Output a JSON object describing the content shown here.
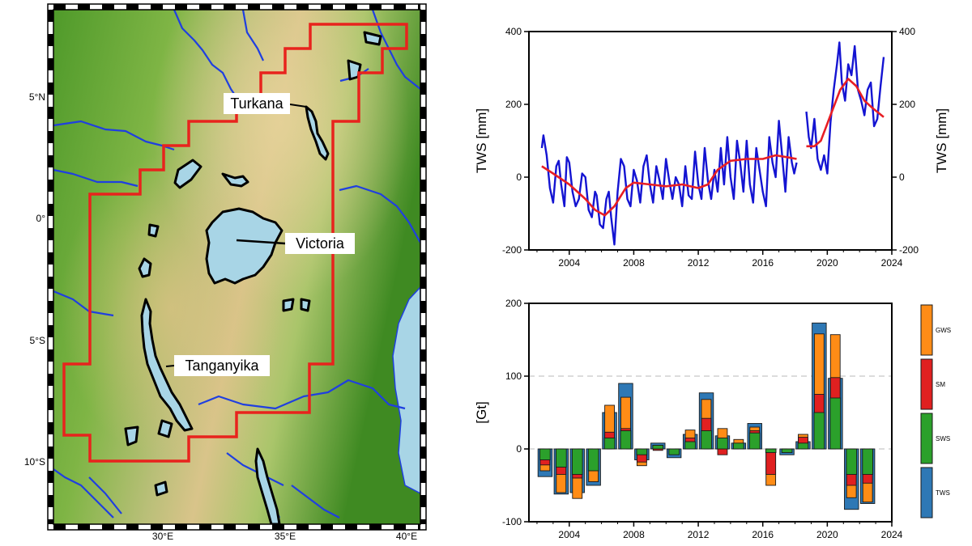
{
  "map": {
    "lon_ticks": [
      "30°E",
      "35°E",
      "40°E"
    ],
    "lat_ticks": [
      "5°N",
      "0°",
      "5°S",
      "10°S"
    ],
    "lakes": [
      {
        "key": "turkana",
        "label": "Turkana"
      },
      {
        "key": "victoria",
        "label": "Victoria"
      },
      {
        "key": "tanganyika",
        "label": "Tanganyika"
      }
    ],
    "colors": {
      "basin_outline": "#e8231d",
      "rivers": "#1f3fe0",
      "lake_fill": "#a8d5e6",
      "lowland": "#4f9a2a",
      "highland": "#d9c48a"
    }
  },
  "chart_data": [
    {
      "type": "line",
      "ylabel_left": "TWS [mm]",
      "ylabel_right": "TWS [mm]",
      "xlim": [
        2001.5,
        2024
      ],
      "ylim": [
        -200,
        400
      ],
      "x_ticks": [
        2004,
        2008,
        2012,
        2016,
        2020,
        2024
      ],
      "y_ticks": [
        -200,
        0,
        200,
        400
      ],
      "grid": false,
      "series": [
        {
          "color": "#1414d2",
          "segments": [
            [
              [
                2002.3,
                80
              ],
              [
                2002.4,
                115
              ],
              [
                2002.6,
                60
              ],
              [
                2002.8,
                -30
              ],
              [
                2003.0,
                -70
              ],
              [
                2003.2,
                30
              ],
              [
                2003.35,
                45
              ],
              [
                2003.5,
                -20
              ],
              [
                2003.7,
                -80
              ],
              [
                2003.85,
                55
              ],
              [
                2004.0,
                40
              ],
              [
                2004.2,
                -40
              ],
              [
                2004.4,
                -80
              ],
              [
                2004.6,
                -60
              ],
              [
                2004.8,
                10
              ],
              [
                2005.0,
                0
              ],
              [
                2005.2,
                -90
              ],
              [
                2005.4,
                -110
              ],
              [
                2005.6,
                -40
              ],
              [
                2005.7,
                -50
              ],
              [
                2005.9,
                -130
              ],
              [
                2006.1,
                -140
              ],
              [
                2006.3,
                -60
              ],
              [
                2006.45,
                -40
              ],
              [
                2006.6,
                -110
              ],
              [
                2006.8,
                -185
              ],
              [
                2007.0,
                -40
              ],
              [
                2007.2,
                50
              ],
              [
                2007.4,
                30
              ],
              [
                2007.6,
                -60
              ],
              [
                2007.8,
                -80
              ],
              [
                2008.0,
                20
              ],
              [
                2008.2,
                -10
              ],
              [
                2008.4,
                -70
              ],
              [
                2008.6,
                30
              ],
              [
                2008.8,
                60
              ],
              [
                2009.0,
                -20
              ],
              [
                2009.2,
                -70
              ],
              [
                2009.4,
                30
              ],
              [
                2009.6,
                -10
              ],
              [
                2009.8,
                -60
              ],
              [
                2010.0,
                50
              ],
              [
                2010.2,
                -10
              ],
              [
                2010.4,
                -60
              ],
              [
                2010.6,
                0
              ],
              [
                2010.8,
                -20
              ],
              [
                2011.0,
                -80
              ],
              [
                2011.2,
                30
              ],
              [
                2011.4,
                -50
              ],
              [
                2011.6,
                -60
              ],
              [
                2011.8,
                70
              ],
              [
                2012.0,
                -20
              ],
              [
                2012.2,
                -60
              ],
              [
                2012.4,
                80
              ],
              [
                2012.6,
                -10
              ],
              [
                2012.8,
                -60
              ],
              [
                2013.0,
                20
              ],
              [
                2013.2,
                -40
              ],
              [
                2013.4,
                80
              ],
              [
                2013.6,
                -20
              ],
              [
                2013.8,
                110
              ],
              [
                2014.0,
                0
              ],
              [
                2014.2,
                -60
              ],
              [
                2014.4,
                100
              ],
              [
                2014.6,
                40
              ],
              [
                2014.8,
                -40
              ],
              [
                2015.0,
                100
              ],
              [
                2015.2,
                -20
              ],
              [
                2015.4,
                -70
              ],
              [
                2015.6,
                80
              ],
              [
                2015.8,
                20
              ],
              [
                2016.0,
                -40
              ],
              [
                2016.2,
                -80
              ],
              [
                2016.4,
                110
              ],
              [
                2016.6,
                40
              ],
              [
                2016.8,
                0
              ],
              [
                2017.0,
                155
              ],
              [
                2017.2,
                60
              ],
              [
                2017.4,
                -40
              ],
              [
                2017.6,
                110
              ],
              [
                2017.8,
                40
              ],
              [
                2017.95,
                10
              ],
              [
                2018.1,
                40
              ]
            ],
            [
              [
                2018.7,
                180
              ],
              [
                2018.85,
                110
              ],
              [
                2019.0,
                80
              ],
              [
                2019.2,
                160
              ],
              [
                2019.4,
                50
              ],
              [
                2019.6,
                20
              ],
              [
                2019.8,
                60
              ],
              [
                2020.0,
                10
              ],
              [
                2020.2,
                150
              ],
              [
                2020.4,
                240
              ],
              [
                2020.6,
                310
              ],
              [
                2020.75,
                370
              ],
              [
                2020.9,
                260
              ],
              [
                2021.1,
                210
              ],
              [
                2021.3,
                310
              ],
              [
                2021.5,
                280
              ],
              [
                2021.7,
                360
              ],
              [
                2021.9,
                240
              ],
              [
                2022.1,
                210
              ],
              [
                2022.3,
                170
              ],
              [
                2022.5,
                240
              ],
              [
                2022.7,
                260
              ],
              [
                2022.9,
                140
              ],
              [
                2023.1,
                160
              ],
              [
                2023.3,
                250
              ],
              [
                2023.5,
                330
              ]
            ]
          ]
        },
        {
          "color": "#e81e24",
          "segments": [
            [
              [
                2002.3,
                30
              ],
              [
                2003.0,
                10
              ],
              [
                2004.0,
                -20
              ],
              [
                2005.0,
                -60
              ],
              [
                2005.6,
                -90
              ],
              [
                2006.2,
                -105
              ],
              [
                2006.8,
                -80
              ],
              [
                2007.5,
                -30
              ],
              [
                2008.0,
                -15
              ],
              [
                2009.0,
                -20
              ],
              [
                2010.0,
                -25
              ],
              [
                2011.0,
                -20
              ],
              [
                2012.0,
                -30
              ],
              [
                2012.6,
                -20
              ],
              [
                2013.2,
                20
              ],
              [
                2014.0,
                45
              ],
              [
                2015.0,
                50
              ],
              [
                2016.0,
                50
              ],
              [
                2016.8,
                60
              ],
              [
                2017.5,
                55
              ],
              [
                2018.1,
                50
              ]
            ],
            [
              [
                2018.7,
                85
              ],
              [
                2019.2,
                85
              ],
              [
                2019.6,
                100
              ],
              [
                2020.2,
                170
              ],
              [
                2020.8,
                240
              ],
              [
                2021.3,
                270
              ],
              [
                2021.8,
                250
              ],
              [
                2022.3,
                210
              ],
              [
                2022.8,
                190
              ],
              [
                2023.5,
                165
              ]
            ]
          ]
        }
      ]
    },
    {
      "type": "bar",
      "ylabel": "[Gt]",
      "xlim": [
        2001.5,
        2024
      ],
      "ylim": [
        -100,
        200
      ],
      "x_ticks": [
        2004,
        2008,
        2012,
        2016,
        2020,
        2024
      ],
      "y_ticks": [
        -100,
        0,
        100,
        200
      ],
      "reference_lines": [
        0,
        100
      ],
      "colors": {
        "TWS": "#2e78b5",
        "SWS": "#2ba02b",
        "SM": "#e02020",
        "GWS": "#ff8c16"
      },
      "legend": [
        "GWS",
        "SM",
        "SWS",
        "TWS"
      ],
      "years": [
        2002.5,
        2003.5,
        2004.5,
        2005.5,
        2006.5,
        2007.5,
        2008.5,
        2009.5,
        2010.5,
        2011.5,
        2012.5,
        2013.5,
        2014.5,
        2015.5,
        2016.5,
        2017.5,
        2018.5,
        2019.5,
        2020.5,
        2021.5,
        2022.5
      ],
      "series": [
        {
          "name": "TWS",
          "values": [
            -38,
            -62,
            -60,
            -50,
            50,
            90,
            -15,
            8,
            -12,
            20,
            77,
            18,
            8,
            35,
            0,
            -8,
            10,
            173,
            97,
            -83,
            -75
          ]
        },
        {
          "name": "SWS",
          "values": [
            -15,
            -25,
            -35,
            -30,
            15,
            25,
            -8,
            5,
            -8,
            10,
            25,
            15,
            8,
            22,
            -5,
            -5,
            8,
            50,
            70,
            -35,
            -35
          ]
        },
        {
          "name": "SM",
          "values": [
            -22,
            -35,
            -40,
            -30,
            23,
            28,
            -18,
            -2,
            -3,
            15,
            42,
            -8,
            3,
            25,
            -35,
            -3,
            16,
            75,
            98,
            -50,
            -47
          ]
        },
        {
          "name": "GWS",
          "values": [
            -30,
            -60,
            -68,
            -45,
            60,
            71,
            -23,
            5,
            -2,
            26,
            68,
            28,
            13,
            30,
            -50,
            -3,
            20,
            158,
            157,
            -67,
            -73
          ]
        }
      ]
    }
  ]
}
